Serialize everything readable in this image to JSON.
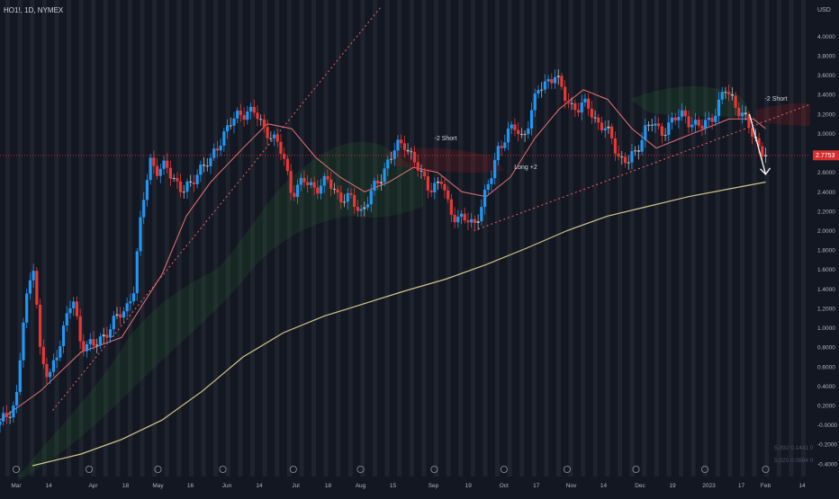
{
  "symbol_label": "HO1!, 1D, NYMEX",
  "chart_data": {
    "type": "candlestick",
    "currency_label": "USD",
    "y_ticks": [
      "4.0000",
      "3.8000",
      "3.6000",
      "3.4000",
      "3.2000",
      "3.0000",
      "2.8000",
      "2.6000",
      "2.4000",
      "2.2000",
      "2.0000",
      "1.8000",
      "1.6000",
      "1.4000",
      "1.2000",
      "1.0000",
      "0.8000",
      "0.6000",
      "0.4000",
      "0.2000",
      "-0.0000",
      "-0.2000",
      "-0.4000"
    ],
    "ylim": [
      -0.42,
      4.3
    ],
    "x_labels": [
      "Mar",
      "14",
      "Apr",
      "18",
      "May",
      "16",
      "Jun",
      "14",
      "Jul",
      "18",
      "Aug",
      "15",
      "Sep",
      "19",
      "Oct",
      "17",
      "Nov",
      "14",
      "Dec",
      "19",
      "2023",
      "17",
      "Feb",
      "14"
    ],
    "last_price": "2.7753",
    "annotations": [
      "-2 Short",
      "Long +2",
      "-2 Short"
    ],
    "bottom_info": [
      "5,092  0.1441  0",
      "5,025  0.0864  0"
    ],
    "close_path": [
      [
        0.0,
        0.0
      ],
      [
        0.02,
        0.25
      ],
      [
        0.03,
        1.15
      ],
      [
        0.042,
        1.7
      ],
      [
        0.05,
        0.7
      ],
      [
        0.06,
        0.45
      ],
      [
        0.075,
        0.9
      ],
      [
        0.09,
        1.3
      ],
      [
        0.1,
        0.85
      ],
      [
        0.115,
        0.8
      ],
      [
        0.13,
        0.95
      ],
      [
        0.145,
        1.1
      ],
      [
        0.155,
        1.2
      ],
      [
        0.165,
        1.4
      ],
      [
        0.175,
        2.2
      ],
      [
        0.185,
        2.75
      ],
      [
        0.195,
        2.6
      ],
      [
        0.205,
        2.65
      ],
      [
        0.215,
        2.55
      ],
      [
        0.225,
        2.4
      ],
      [
        0.235,
        2.45
      ],
      [
        0.245,
        2.65
      ],
      [
        0.26,
        2.7
      ],
      [
        0.275,
        3.0
      ],
      [
        0.29,
        3.15
      ],
      [
        0.305,
        3.25
      ],
      [
        0.315,
        3.2
      ],
      [
        0.325,
        3.05
      ],
      [
        0.335,
        3.0
      ],
      [
        0.35,
        2.75
      ],
      [
        0.36,
        2.4
      ],
      [
        0.375,
        2.5
      ],
      [
        0.39,
        2.45
      ],
      [
        0.405,
        2.5
      ],
      [
        0.42,
        2.35
      ],
      [
        0.435,
        2.3
      ],
      [
        0.445,
        2.2
      ],
      [
        0.46,
        2.4
      ],
      [
        0.47,
        2.55
      ],
      [
        0.48,
        2.75
      ],
      [
        0.49,
        2.85
      ],
      [
        0.5,
        2.9
      ],
      [
        0.51,
        2.75
      ],
      [
        0.52,
        2.55
      ],
      [
        0.53,
        2.45
      ],
      [
        0.545,
        2.5
      ],
      [
        0.555,
        2.2
      ],
      [
        0.565,
        2.15
      ],
      [
        0.575,
        2.1
      ],
      [
        0.585,
        2.05
      ],
      [
        0.595,
        2.3
      ],
      [
        0.605,
        2.5
      ],
      [
        0.615,
        2.85
      ],
      [
        0.625,
        3.0
      ],
      [
        0.635,
        3.05
      ],
      [
        0.645,
        2.95
      ],
      [
        0.655,
        3.2
      ],
      [
        0.665,
        3.45
      ],
      [
        0.675,
        3.55
      ],
      [
        0.685,
        3.6
      ],
      [
        0.695,
        3.4
      ],
      [
        0.705,
        3.3
      ],
      [
        0.715,
        3.25
      ],
      [
        0.725,
        3.3
      ],
      [
        0.735,
        3.15
      ],
      [
        0.745,
        3.05
      ],
      [
        0.755,
        2.95
      ],
      [
        0.765,
        2.75
      ],
      [
        0.775,
        2.7
      ],
      [
        0.785,
        2.8
      ],
      [
        0.795,
        3.05
      ],
      [
        0.805,
        3.1
      ],
      [
        0.815,
        3.0
      ],
      [
        0.825,
        3.1
      ],
      [
        0.835,
        3.15
      ],
      [
        0.845,
        3.2
      ],
      [
        0.855,
        3.1
      ],
      [
        0.865,
        3.05
      ],
      [
        0.875,
        3.15
      ],
      [
        0.885,
        3.25
      ],
      [
        0.895,
        3.45
      ],
      [
        0.905,
        3.35
      ],
      [
        0.915,
        3.2
      ],
      [
        0.925,
        3.05
      ],
      [
        0.935,
        2.9
      ],
      [
        0.945,
        2.78
      ]
    ],
    "ma_fast": [
      [
        0.0,
        0.05
      ],
      [
        0.05,
        0.35
      ],
      [
        0.1,
        0.75
      ],
      [
        0.15,
        0.9
      ],
      [
        0.2,
        1.55
      ],
      [
        0.23,
        2.15
      ],
      [
        0.26,
        2.5
      ],
      [
        0.3,
        2.85
      ],
      [
        0.33,
        3.1
      ],
      [
        0.36,
        3.05
      ],
      [
        0.39,
        2.75
      ],
      [
        0.42,
        2.55
      ],
      [
        0.45,
        2.4
      ],
      [
        0.48,
        2.5
      ],
      [
        0.51,
        2.65
      ],
      [
        0.54,
        2.6
      ],
      [
        0.57,
        2.4
      ],
      [
        0.6,
        2.35
      ],
      [
        0.63,
        2.55
      ],
      [
        0.66,
        2.95
      ],
      [
        0.69,
        3.25
      ],
      [
        0.72,
        3.45
      ],
      [
        0.75,
        3.35
      ],
      [
        0.78,
        3.05
      ],
      [
        0.81,
        2.85
      ],
      [
        0.84,
        2.95
      ],
      [
        0.87,
        3.05
      ],
      [
        0.9,
        3.15
      ],
      [
        0.93,
        3.15
      ],
      [
        0.945,
        3.05
      ]
    ],
    "ma_slow": [
      [
        0.04,
        -0.42
      ],
      [
        0.1,
        -0.3
      ],
      [
        0.15,
        -0.15
      ],
      [
        0.2,
        0.05
      ],
      [
        0.25,
        0.35
      ],
      [
        0.3,
        0.7
      ],
      [
        0.35,
        0.95
      ],
      [
        0.4,
        1.12
      ],
      [
        0.45,
        1.25
      ],
      [
        0.5,
        1.38
      ],
      [
        0.55,
        1.5
      ],
      [
        0.6,
        1.65
      ],
      [
        0.65,
        1.82
      ],
      [
        0.7,
        2.0
      ],
      [
        0.75,
        2.15
      ],
      [
        0.8,
        2.25
      ],
      [
        0.85,
        2.35
      ],
      [
        0.9,
        2.43
      ],
      [
        0.945,
        2.5
      ]
    ],
    "trendline_1": [
      [
        0.065,
        0.15
      ],
      [
        0.47,
        4.3
      ]
    ],
    "trendline_2": [
      [
        0.585,
        2.0
      ],
      [
        1.0,
        3.3
      ]
    ],
    "arrow_from": [
      0.925,
      3.2
    ],
    "arrow_to": [
      0.945,
      2.58
    ],
    "grid": true
  },
  "colors": {
    "background": "#131722",
    "stripe": "#2a2e39",
    "up": "#2196f3",
    "down": "#e53935",
    "neutral": "#b2b5be",
    "ma_fast": "#e57373",
    "ma_slow": "#d4c38a",
    "trend": "#f06060",
    "price_line": "#c62828",
    "axis_text": "#b2b5be"
  }
}
